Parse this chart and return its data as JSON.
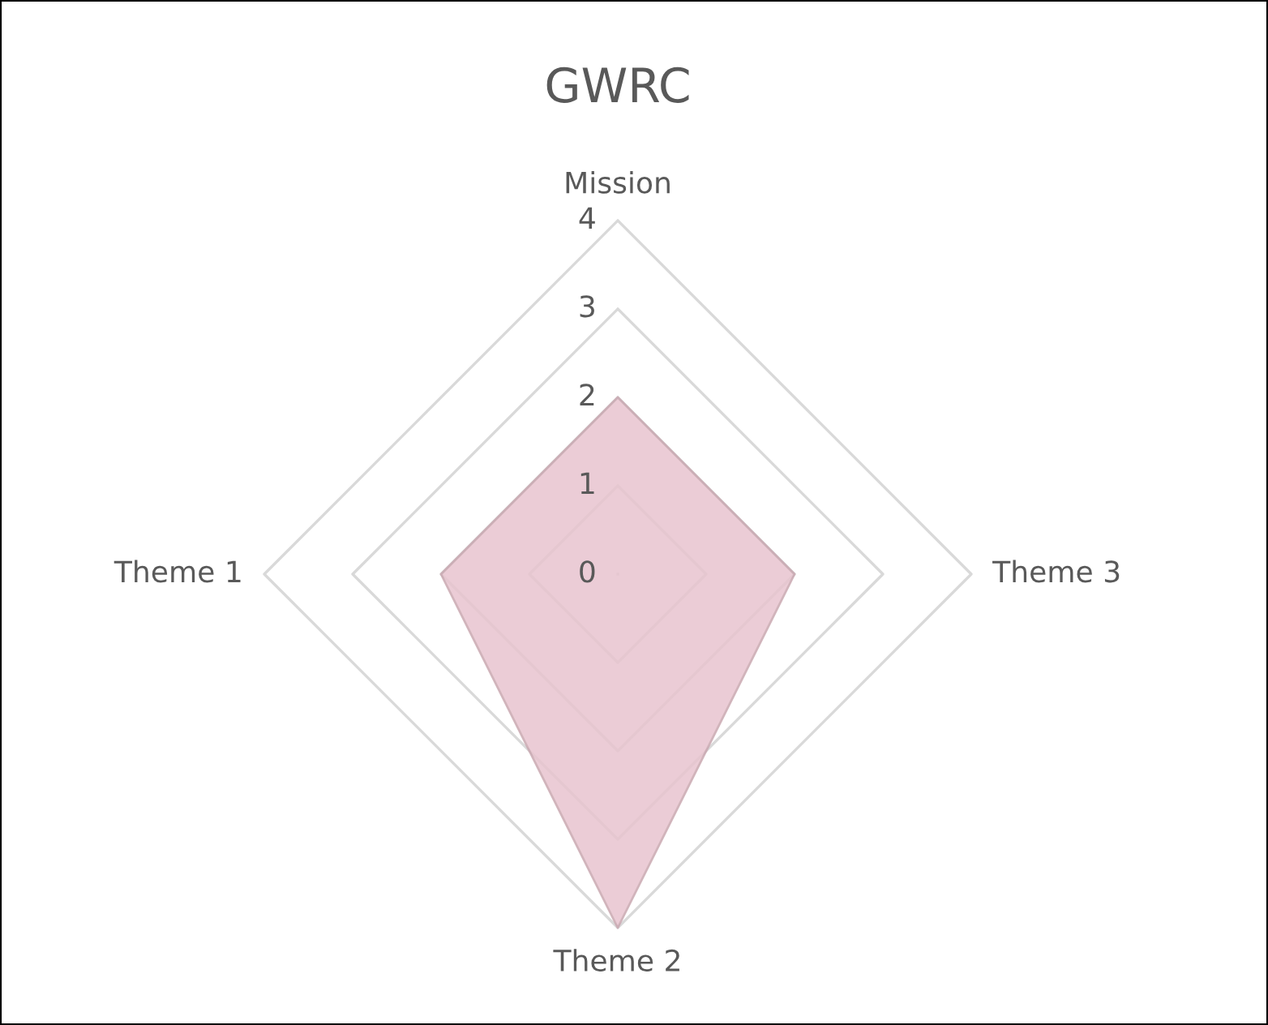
{
  "chart_data": {
    "type": "radar",
    "title": "GWRC",
    "categories": [
      "Mission",
      "Theme 3",
      "Theme 2",
      "Theme 1"
    ],
    "series": [
      {
        "color": "#e8c4cf",
        "values": [
          2,
          2,
          4,
          2
        ]
      }
    ],
    "ylim": [
      0,
      4
    ],
    "yticks": [
      0,
      1,
      2,
      3,
      4
    ],
    "grid": true
  }
}
